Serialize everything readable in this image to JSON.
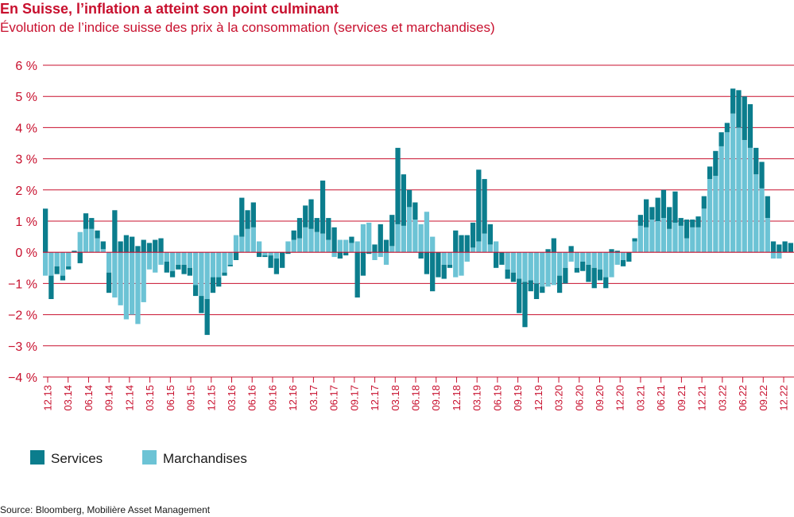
{
  "colors": {
    "services": "#0b7d8d",
    "marchandises": "#6cc3d5",
    "gridline": "#c8102e",
    "text_accent": "#c8102e"
  },
  "chart_data": {
    "type": "bar",
    "stacked": true,
    "title": "En Suisse, l’inflation a atteint son point culminant",
    "subtitle": "Évolution de l’indice suisse des prix à la consommation (services et marchandises)",
    "source": "Source: Bloomberg, Mobilière Asset Management",
    "ylim": [
      -4,
      6
    ],
    "yticks": [
      6,
      5,
      4,
      3,
      2,
      1,
      0,
      -1,
      -2,
      -3,
      -4
    ],
    "ytick_labels": [
      "6 %",
      "5 %",
      "4 %",
      "3 %",
      "2 %",
      "1 %",
      "0 %",
      "−1 %",
      "−2 %",
      "−3 %",
      "−4 %"
    ],
    "xtick_labels": [
      "12.13",
      "03.14",
      "06.14",
      "09.14",
      "12.14",
      "03.15",
      "06.15",
      "09.15",
      "12.15",
      "03.16",
      "06.16",
      "09.16",
      "12.16",
      "03.17",
      "06.17",
      "09.17",
      "12.17",
      "03.18",
      "06.18",
      "09.18",
      "12.18",
      "03.19",
      "06.19",
      "09.19",
      "12.19",
      "03.20",
      "06.20",
      "09.20",
      "12.20",
      "03.21",
      "06.21",
      "09.21",
      "12.21",
      "03.22",
      "06.22",
      "09.22",
      "12.22"
    ],
    "legend": {
      "placement": "bottom-left",
      "entries": [
        "Services",
        "Marchandises"
      ]
    },
    "grid": true,
    "series": [
      {
        "name": "Services",
        "values": [
          1.4,
          -0.75,
          -0.25,
          -0.15,
          -0.1,
          0.05,
          -0.35,
          0.5,
          0.35,
          0.25,
          0.25,
          -0.65,
          1.35,
          0.35,
          0.55,
          0.5,
          0.2,
          0.4,
          0.3,
          0.4,
          0.45,
          -0.35,
          -0.2,
          -0.15,
          -0.3,
          -0.25,
          -0.35,
          -0.55,
          -1.15,
          -0.5,
          -0.3,
          -0.1,
          -0.05,
          -0.25,
          1.25,
          0.6,
          0.8,
          -0.15,
          -0.05,
          -0.4,
          -0.5,
          -0.5,
          -0.05,
          0.3,
          0.65,
          0.7,
          0.95,
          0.45,
          1.7,
          0.7,
          0.8,
          -0.2,
          -0.1,
          0.2,
          -1.45,
          -0.75,
          -0.05,
          0.25,
          0.9,
          0.4,
          1.0,
          2.45,
          1.65,
          0.55,
          0.55,
          -0.2,
          -0.7,
          -1.25,
          -0.8,
          -0.45,
          -0.1,
          0.7,
          0.55,
          0.55,
          0.8,
          2.3,
          1.75,
          0.65,
          -0.5,
          -0.4,
          -0.3,
          -0.3,
          -1.1,
          -1.45,
          -0.35,
          -0.5,
          -0.2,
          0.1,
          0.45,
          -0.55,
          -0.5,
          0.2,
          -0.15,
          -0.3,
          -0.55,
          -0.65,
          -0.35,
          -0.35,
          0.1,
          0.05,
          -0.2,
          -0.3,
          0.1,
          0.35,
          0.9,
          0.4,
          0.75,
          0.9,
          0.7,
          1.0,
          0.25,
          0.6,
          0.25,
          0.35,
          0.4,
          0.4,
          0.8,
          0.45,
          0.3,
          0.8,
          1.2,
          1.4,
          1.4,
          0.85,
          0.85,
          0.7,
          0.35,
          0.25,
          0.35,
          0.3
        ]
      },
      {
        "name": "Marchandises",
        "values": [
          -0.75,
          -0.75,
          -0.45,
          -0.75,
          -0.45,
          0.0,
          0.65,
          0.75,
          0.75,
          0.45,
          0.1,
          -0.65,
          -1.45,
          -1.7,
          -2.15,
          -2.0,
          -2.3,
          -1.6,
          -0.55,
          -0.65,
          -0.4,
          -0.3,
          -0.6,
          -0.4,
          -0.4,
          -0.5,
          -1.05,
          -1.4,
          -1.5,
          -0.8,
          -0.8,
          -0.65,
          -0.4,
          0.55,
          0.5,
          0.75,
          0.8,
          0.35,
          -0.1,
          -0.1,
          -0.2,
          0.0,
          0.35,
          0.4,
          0.45,
          0.8,
          0.75,
          0.65,
          0.6,
          0.4,
          -0.15,
          0.4,
          0.4,
          0.3,
          0.35,
          0.9,
          0.95,
          -0.25,
          -0.15,
          -0.4,
          0.2,
          0.9,
          0.85,
          1.45,
          1.05,
          0.9,
          1.3,
          0.5,
          0.0,
          -0.4,
          -0.4,
          -0.8,
          -0.75,
          -0.3,
          0.15,
          0.35,
          0.6,
          0.25,
          0.35,
          0.0,
          -0.55,
          -0.65,
          -0.85,
          -0.95,
          -0.9,
          -1.0,
          -1.1,
          -1.1,
          -1.05,
          -0.75,
          -0.5,
          -0.3,
          -0.5,
          -0.3,
          -0.4,
          -0.5,
          -0.55,
          -0.8,
          -0.8,
          -0.4,
          -0.25,
          0.0,
          0.35,
          0.85,
          0.8,
          1.05,
          1.0,
          1.1,
          0.75,
          0.95,
          0.85,
          0.45,
          0.8,
          0.8,
          1.4,
          2.35,
          2.45,
          3.4,
          3.85,
          4.45,
          4.0,
          3.6,
          3.35,
          2.5,
          2.05,
          1.1,
          -0.2,
          -0.2
        ]
      }
    ]
  }
}
